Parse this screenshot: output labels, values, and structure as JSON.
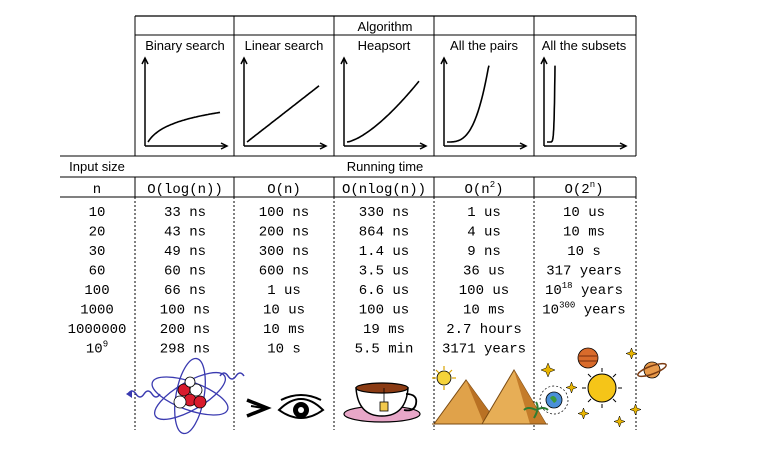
{
  "headers": {
    "algorithm": "Algorithm",
    "input_size": "Input size",
    "running_time": "Running time",
    "n_label": "n"
  },
  "algorithms": [
    {
      "name": "Binary search",
      "complexity": "O(log(n))",
      "curve": "log"
    },
    {
      "name": "Linear search",
      "complexity": "O(n)",
      "curve": "linear"
    },
    {
      "name": "Heapsort",
      "complexity": "O(nlog(n))",
      "curve": "nlogn"
    },
    {
      "name": "All the pairs",
      "complexity_base": "O(n",
      "complexity_exp": "2",
      "complexity_tail": ")",
      "curve": "quadratic"
    },
    {
      "name": "All the subsets",
      "complexity_base": "O(2",
      "complexity_exp": "n",
      "complexity_tail": ")",
      "curve": "exponential"
    }
  ],
  "input_sizes": [
    {
      "base": "10",
      "exp": ""
    },
    {
      "base": "20",
      "exp": ""
    },
    {
      "base": "30",
      "exp": ""
    },
    {
      "base": "60",
      "exp": ""
    },
    {
      "base": "100",
      "exp": ""
    },
    {
      "base": "1000",
      "exp": ""
    },
    {
      "base": "1000000",
      "exp": ""
    },
    {
      "base": "10",
      "exp": "9"
    }
  ],
  "times": [
    [
      {
        "t": "33 ns"
      },
      {
        "t": "100 ns"
      },
      {
        "t": "330 ns"
      },
      {
        "t": "1 us"
      },
      {
        "t": "10 us"
      }
    ],
    [
      {
        "t": "43 ns"
      },
      {
        "t": "200 ns"
      },
      {
        "t": "864 ns"
      },
      {
        "t": "4 us"
      },
      {
        "t": "10 ms"
      }
    ],
    [
      {
        "t": "49 ns"
      },
      {
        "t": "300 ns"
      },
      {
        "t": "1.4 us"
      },
      {
        "t": "9 ns"
      },
      {
        "t": "10 s"
      }
    ],
    [
      {
        "t": "60 ns"
      },
      {
        "t": "600 ns"
      },
      {
        "t": "3.5 us"
      },
      {
        "t": "36 us"
      },
      {
        "t": "317 years"
      }
    ],
    [
      {
        "t": "66 ns"
      },
      {
        "t": "1 us"
      },
      {
        "t": "6.6 us"
      },
      {
        "t": "100 us"
      },
      {
        "base": "10",
        "exp": "18",
        "tail": " years"
      }
    ],
    [
      {
        "t": "100 ns"
      },
      {
        "t": "10 us"
      },
      {
        "t": "100 us"
      },
      {
        "t": "10 ms"
      },
      {
        "base": "10",
        "exp": "300",
        "tail": " years"
      }
    ],
    [
      {
        "t": "200 ns"
      },
      {
        "t": "10 ms"
      },
      {
        "t": "19 ms"
      },
      {
        "t": "2.7 hours"
      },
      {
        "t": ""
      }
    ],
    [
      {
        "t": "298 ns"
      },
      {
        "t": "10 s"
      },
      {
        "t": "5.5 min"
      },
      {
        "t": "3171 years"
      },
      {
        "t": ""
      }
    ]
  ],
  "illustrations": [
    "atom-icon",
    "eyes-icon",
    "teacup-icon",
    "pyramids-icon",
    "solar-system-icon"
  ]
}
